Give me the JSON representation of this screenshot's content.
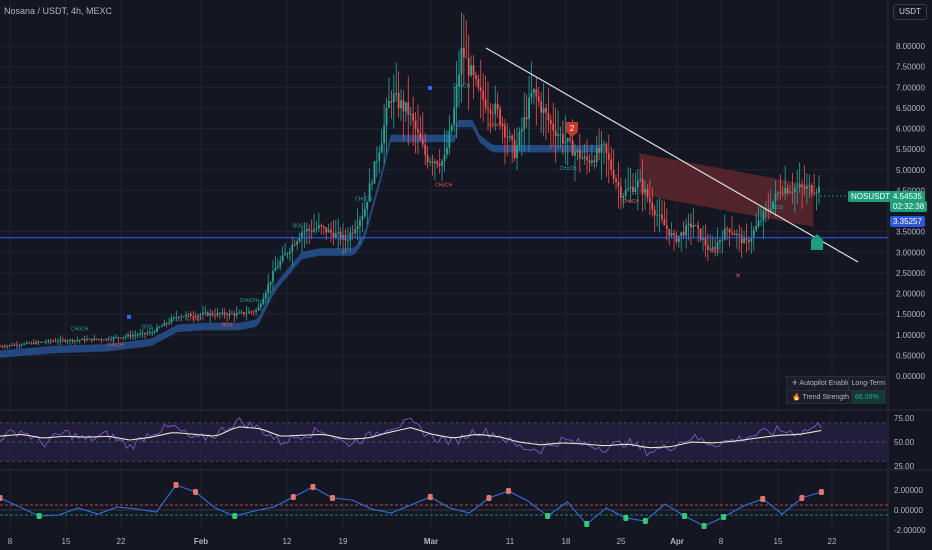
{
  "header": {
    "title": "Nosana / USDT, 4h, MEXC",
    "currency": "USDT"
  },
  "price_tags": {
    "symbol": "NOSUSDT",
    "last_price": "4.54535",
    "countdown": "02:32:38",
    "level": "3.35257"
  },
  "info_panel": {
    "rows": [
      {
        "label": "✈ Autopilot Enabled",
        "value": "Long-Term"
      },
      {
        "label": "🔥 Trend Strength",
        "value": "66.09%"
      }
    ]
  },
  "colors": {
    "up": "#26a69a",
    "down": "#ef5350",
    "blue_zone": "#2a5a9e",
    "red_zone": "#6b2a2e",
    "level_line": "#2962ff",
    "trend_line": "#e0e0e0",
    "osc_line": "#7e57c2",
    "osc_signal": "#e6e6c8"
  },
  "chart_data": [
    {
      "type": "candlestick",
      "title": "Nosana / USDT, 4h, MEXC",
      "xlabel": "",
      "ylabel": "USDT",
      "x_ticks": [
        "8",
        "15",
        "22",
        "Feb",
        "12",
        "19",
        "Mar",
        "11",
        "18",
        "25",
        "Apr",
        "8",
        "15",
        "22"
      ],
      "y_ticks": [
        "8.00000",
        "7.50000",
        "7.00000",
        "6.50000",
        "6.00000",
        "5.50000",
        "5.00000",
        "4.50000",
        "3.50000",
        "3.00000",
        "2.50000",
        "2.00000",
        "1.50000",
        "1.00000",
        "0.50000",
        "0.00000"
      ],
      "ylim": [
        0,
        8.2
      ],
      "close_path": [
        [
          0,
          0.72
        ],
        [
          0.06,
          0.85
        ],
        [
          0.12,
          0.9
        ],
        [
          0.17,
          1.05
        ],
        [
          0.2,
          1.45
        ],
        [
          0.23,
          1.5
        ],
        [
          0.27,
          1.5
        ],
        [
          0.29,
          1.6
        ],
        [
          0.31,
          2.6
        ],
        [
          0.34,
          3.5
        ],
        [
          0.36,
          3.6
        ],
        [
          0.39,
          3.3
        ],
        [
          0.41,
          4.0
        ],
        [
          0.43,
          5.8
        ],
        [
          0.44,
          6.8
        ],
        [
          0.46,
          6.4
        ],
        [
          0.48,
          5.3
        ],
        [
          0.5,
          5.2
        ],
        [
          0.51,
          6.2
        ],
        [
          0.52,
          7.9
        ],
        [
          0.54,
          6.8
        ],
        [
          0.56,
          6.4
        ],
        [
          0.58,
          5.4
        ],
        [
          0.6,
          6.9
        ],
        [
          0.62,
          6.1
        ],
        [
          0.64,
          5.6
        ],
        [
          0.66,
          5.2
        ],
        [
          0.68,
          5.5
        ],
        [
          0.7,
          4.4
        ],
        [
          0.72,
          4.7
        ],
        [
          0.74,
          3.9
        ],
        [
          0.76,
          3.3
        ],
        [
          0.78,
          3.7
        ],
        [
          0.8,
          3.0
        ],
        [
          0.82,
          3.6
        ],
        [
          0.84,
          3.2
        ],
        [
          0.86,
          3.9
        ],
        [
          0.88,
          4.55
        ]
      ],
      "annotations": [
        "BOS",
        "CHoCH",
        "CHoCH+",
        "2"
      ],
      "horizontal_level": 3.35257
    },
    {
      "type": "line",
      "name": "oscillator",
      "y_ticks": [
        "75.00",
        "50.00",
        "25.00"
      ],
      "ylim": [
        25,
        75
      ],
      "series": [
        {
          "values": [
            55,
            62,
            48,
            60,
            52,
            58,
            45,
            60,
            66,
            52,
            58,
            72,
            64,
            50,
            58,
            62,
            48,
            55,
            66,
            70,
            55,
            50,
            62,
            58,
            45,
            42,
            52,
            48,
            44,
            50,
            40,
            45,
            55,
            48,
            52,
            58,
            62,
            60,
            68
          ]
        },
        {
          "values": [
            56,
            58,
            54,
            56,
            55,
            56,
            52,
            55,
            60,
            58,
            56,
            66,
            64,
            56,
            57,
            58,
            53,
            54,
            60,
            65,
            58,
            54,
            58,
            56,
            50,
            47,
            49,
            48,
            46,
            48,
            44,
            45,
            50,
            49,
            51,
            54,
            57,
            58,
            62
          ]
        }
      ]
    },
    {
      "type": "line",
      "name": "momentum",
      "y_ticks": [
        "2.00000",
        "0.00000",
        "-2.00000"
      ],
      "ylim": [
        -2.6,
        2.8
      ],
      "series": [
        {
          "values": [
            1.2,
            0.3,
            -0.6,
            -0.5,
            0.2,
            -0.4,
            0.3,
            0.1,
            -0.2,
            2.5,
            1.8,
            0.2,
            -0.6,
            -0.1,
            0.3,
            1.3,
            2.3,
            1.2,
            1.0,
            0.1,
            -0.3,
            0.5,
            1.3,
            0.2,
            -0.3,
            1.2,
            1.9,
            0.9,
            -0.6,
            0.8,
            -1.4,
            0.2,
            -0.8,
            -1.1,
            0.6,
            -0.6,
            -1.6,
            -0.7,
            0.4,
            1.1,
            -0.4,
            1.2,
            1.8
          ]
        }
      ]
    }
  ]
}
